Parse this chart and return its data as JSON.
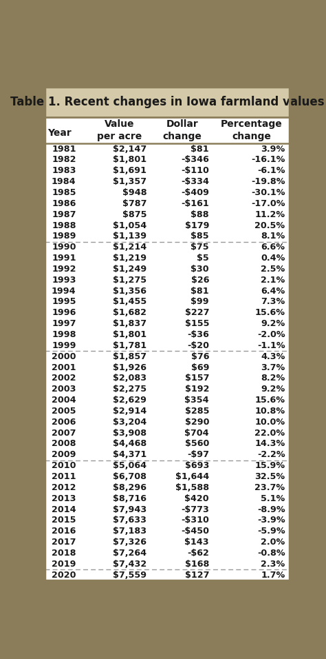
{
  "title": "Table 1. Recent changes in Iowa farmland values",
  "header_line1": [
    "Year",
    "Value",
    "Dollar",
    "Percentage"
  ],
  "header_line2": [
    "",
    "per acre",
    "change",
    "change"
  ],
  "rows": [
    [
      "1981",
      "$2,147",
      "$81",
      "3.9%"
    ],
    [
      "1982",
      "$1,801",
      "-$346",
      "-16.1%"
    ],
    [
      "1983",
      "$1,691",
      "-$110",
      "-6.1%"
    ],
    [
      "1984",
      "$1,357",
      "-$334",
      "-19.8%"
    ],
    [
      "1985",
      "$948",
      "-$409",
      "-30.1%"
    ],
    [
      "1986",
      "$787",
      "-$161",
      "-17.0%"
    ],
    [
      "1987",
      "$875",
      "$88",
      "11.2%"
    ],
    [
      "1988",
      "$1,054",
      "$179",
      "20.5%"
    ],
    [
      "1989",
      "$1,139",
      "$85",
      "8.1%"
    ],
    [
      "1990",
      "$1,214",
      "$75",
      "6.6%"
    ],
    [
      "1991",
      "$1,219",
      "$5",
      "0.4%"
    ],
    [
      "1992",
      "$1,249",
      "$30",
      "2.5%"
    ],
    [
      "1993",
      "$1,275",
      "$26",
      "2.1%"
    ],
    [
      "1994",
      "$1,356",
      "$81",
      "6.4%"
    ],
    [
      "1995",
      "$1,455",
      "$99",
      "7.3%"
    ],
    [
      "1996",
      "$1,682",
      "$227",
      "15.6%"
    ],
    [
      "1997",
      "$1,837",
      "$155",
      "9.2%"
    ],
    [
      "1998",
      "$1,801",
      "-$36",
      "-2.0%"
    ],
    [
      "1999",
      "$1,781",
      "-$20",
      "-1.1%"
    ],
    [
      "2000",
      "$1,857",
      "$76",
      "4.3%"
    ],
    [
      "2001",
      "$1,926",
      "$69",
      "3.7%"
    ],
    [
      "2002",
      "$2,083",
      "$157",
      "8.2%"
    ],
    [
      "2003",
      "$2,275",
      "$192",
      "9.2%"
    ],
    [
      "2004",
      "$2,629",
      "$354",
      "15.6%"
    ],
    [
      "2005",
      "$2,914",
      "$285",
      "10.8%"
    ],
    [
      "2006",
      "$3,204",
      "$290",
      "10.0%"
    ],
    [
      "2007",
      "$3,908",
      "$704",
      "22.0%"
    ],
    [
      "2008",
      "$4,468",
      "$560",
      "14.3%"
    ],
    [
      "2009",
      "$4,371",
      "-$97",
      "-2.2%"
    ],
    [
      "2010",
      "$5,064",
      "$693",
      "15.9%"
    ],
    [
      "2011",
      "$6,708",
      "$1,644",
      "32.5%"
    ],
    [
      "2012",
      "$8,296",
      "$1,588",
      "23.7%"
    ],
    [
      "2013",
      "$8,716",
      "$420",
      "5.1%"
    ],
    [
      "2014",
      "$7,943",
      "-$773",
      "-8.9%"
    ],
    [
      "2015",
      "$7,633",
      "-$310",
      "-3.9%"
    ],
    [
      "2016",
      "$7,183",
      "-$450",
      "-5.9%"
    ],
    [
      "2017",
      "$7,326",
      "$143",
      "2.0%"
    ],
    [
      "2018",
      "$7,264",
      "-$62",
      "-0.8%"
    ],
    [
      "2019",
      "$7,432",
      "$168",
      "2.3%"
    ],
    [
      "2020",
      "$7,559",
      "$127",
      "1.7%"
    ]
  ],
  "dashed_after_rows": [
    8,
    18,
    28,
    38
  ],
  "title_bg_color": "#d4c9a8",
  "border_color": "#8b7d5a",
  "dashed_color": "#999999",
  "text_color": "#1a1a1a",
  "font_size": 9.2,
  "header_font_size": 10.0,
  "title_font_size": 12.0
}
